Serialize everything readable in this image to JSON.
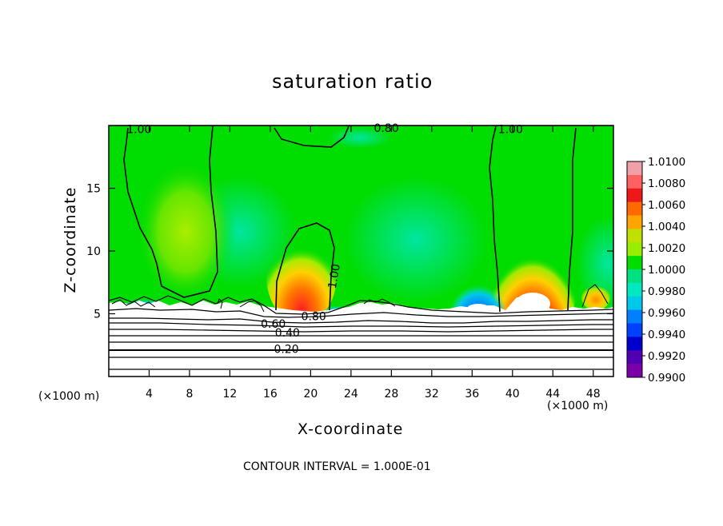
{
  "chart_data": {
    "type": "heatmap",
    "title": "saturation ratio",
    "xlabel": "X-coordinate",
    "ylabel": "Z-coordinate",
    "x_unit_left": "(×1000 m)",
    "x_unit_right": "(×1000 m)",
    "xlim": [
      0,
      50
    ],
    "ylim": [
      0,
      20
    ],
    "x_ticks": [
      4,
      8,
      12,
      16,
      20,
      24,
      28,
      32,
      36,
      40,
      44,
      48
    ],
    "y_ticks": [
      5,
      10,
      15
    ],
    "footer": "CONTOUR INTERVAL = 1.000E-01",
    "colorbar": {
      "labels": [
        "1.0100",
        "1.0080",
        "1.0060",
        "1.0040",
        "1.0020",
        "1.0000",
        "0.9980",
        "0.9960",
        "0.9940",
        "0.9920",
        "0.9900"
      ],
      "colors": [
        "#f0a0a8",
        "#ff6060",
        "#ee1818",
        "#ff6a00",
        "#ffa500",
        "#c0e000",
        "#99ee00",
        "#00dd00",
        "#00e080",
        "#00e8c0",
        "#00c8e8",
        "#0080ff",
        "#0040ff",
        "#0000cc",
        "#5000b0",
        "#7c00a8"
      ]
    },
    "contour_labels": [
      {
        "text": "1.00",
        "x": 3,
        "y": 19.7
      },
      {
        "text": "0.80",
        "x": 27.5,
        "y": 19.8
      },
      {
        "text": "1.00",
        "x": 39.8,
        "y": 19.7
      },
      {
        "text": "1.00",
        "x": 22.3,
        "y": 8.0
      },
      {
        "text": "0.80",
        "x": 20.3,
        "y": 4.8
      },
      {
        "text": "0.60",
        "x": 16.3,
        "y": 4.2
      },
      {
        "text": "0.40",
        "x": 17.7,
        "y": 3.5
      },
      {
        "text": "0.20",
        "x": 17.6,
        "y": 2.2
      }
    ]
  }
}
